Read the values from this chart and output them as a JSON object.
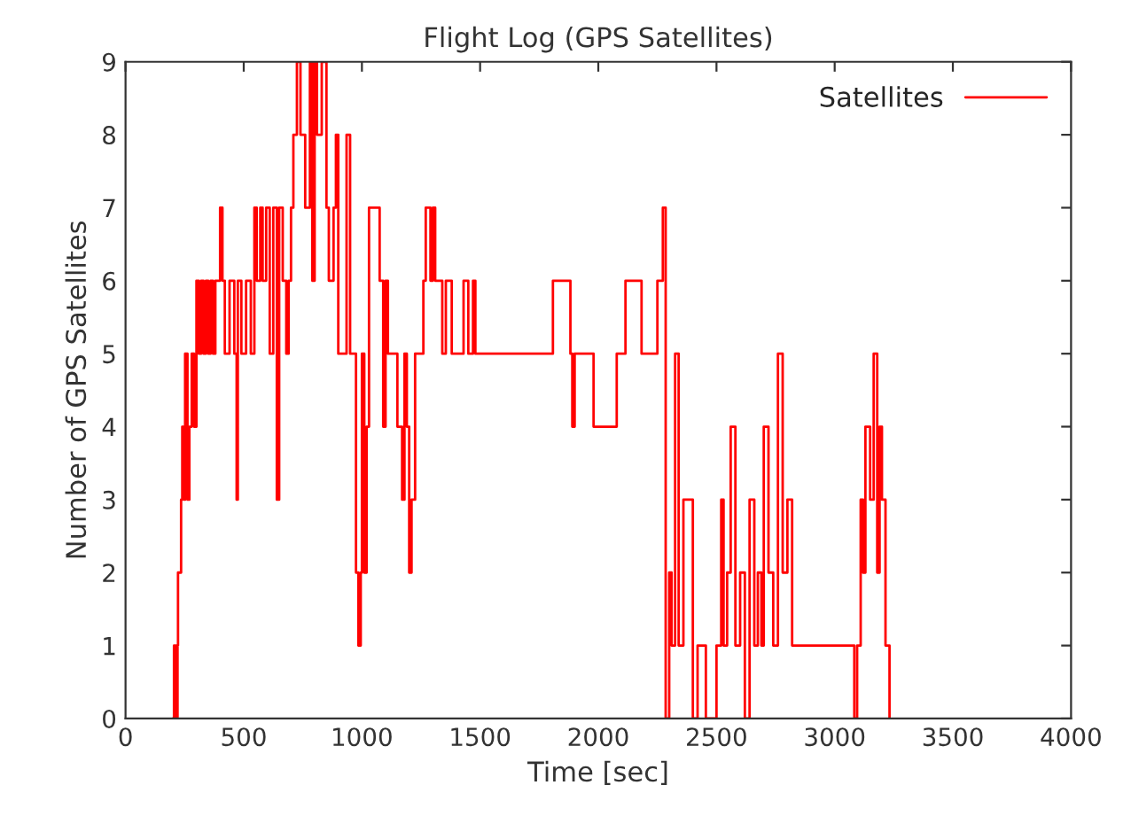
{
  "chart_data": {
    "type": "step",
    "title": "Flight Log (GPS Satellites)",
    "xlabel": "Time [sec]",
    "ylabel": "Number of GPS Satellites",
    "xlim": [
      0,
      4000
    ],
    "xticks": [
      0,
      500,
      1000,
      1500,
      2000,
      2500,
      3000,
      3500,
      4000
    ],
    "ylim": [
      0,
      9
    ],
    "yticks": [
      0,
      1,
      2,
      3,
      4,
      5,
      6,
      7,
      8,
      9
    ],
    "grid": false,
    "legend": "top right",
    "marker": "none",
    "line_style": "solid",
    "series": [
      {
        "name": "Satellites",
        "color": "#ff0000",
        "x": [
          200,
          205,
          215,
          220,
          222,
          235,
          240,
          248,
          252,
          262,
          270,
          280,
          290,
          300,
          310,
          320,
          330,
          340,
          350,
          360,
          370,
          380,
          400,
          410,
          420,
          440,
          460,
          470,
          475,
          490,
          510,
          530,
          545,
          555,
          570,
          580,
          595,
          610,
          625,
          640,
          650,
          665,
          680,
          690,
          700,
          710,
          725,
          740,
          760,
          780,
          790,
          800,
          810,
          830,
          850,
          860,
          880,
          890,
          900,
          935,
          950,
          975,
          985,
          995,
          1000,
          1010,
          1020,
          1030,
          1060,
          1075,
          1090,
          1100,
          1110,
          1150,
          1170,
          1180,
          1190,
          1200,
          1210,
          1225,
          1260,
          1270,
          1290,
          1300,
          1310,
          1340,
          1355,
          1380,
          1430,
          1450,
          1470,
          1480,
          1695,
          1808,
          1882,
          1890,
          1900,
          1980,
          2078,
          2115,
          2183,
          2250,
          2273,
          2285,
          2300,
          2310,
          2325,
          2340,
          2360,
          2400,
          2420,
          2455,
          2480,
          2500,
          2520,
          2530,
          2545,
          2560,
          2580,
          2600,
          2620,
          2640,
          2660,
          2675,
          2690,
          2700,
          2720,
          2740,
          2760,
          2780,
          2800,
          2820,
          3083,
          3095,
          3110,
          3120,
          3130,
          3150,
          3165,
          3180,
          3190,
          3200,
          3215,
          3232
        ],
        "values": [
          0,
          1,
          0,
          1,
          2,
          3,
          4,
          3,
          5,
          3,
          4,
          5,
          4,
          6,
          5,
          6,
          5,
          6,
          5,
          6,
          5,
          6,
          7,
          6,
          5,
          6,
          5,
          3,
          6,
          5,
          6,
          5,
          7,
          6,
          7,
          6,
          7,
          5,
          7,
          3,
          7,
          6,
          5,
          6,
          7,
          8,
          9,
          8,
          7,
          9,
          6,
          9,
          8,
          9,
          7,
          6,
          7,
          8,
          5,
          8,
          5,
          2,
          1,
          2,
          5,
          2,
          4,
          7,
          7,
          6,
          4,
          6,
          5,
          4,
          3,
          5,
          4,
          2,
          3,
          5,
          6,
          7,
          6,
          7,
          6,
          5,
          6,
          5,
          6,
          5,
          6,
          5,
          5,
          6,
          5,
          4,
          5,
          4,
          5,
          6,
          5,
          6,
          7,
          0,
          2,
          1,
          5,
          1,
          3,
          0,
          1,
          0,
          0,
          1,
          3,
          1,
          2,
          4,
          1,
          2,
          0,
          3,
          1,
          2,
          1,
          4,
          2,
          1,
          5,
          2,
          3,
          1,
          0,
          1,
          3,
          2,
          4,
          3,
          5,
          2,
          4,
          3,
          1,
          0
        ]
      }
    ]
  }
}
